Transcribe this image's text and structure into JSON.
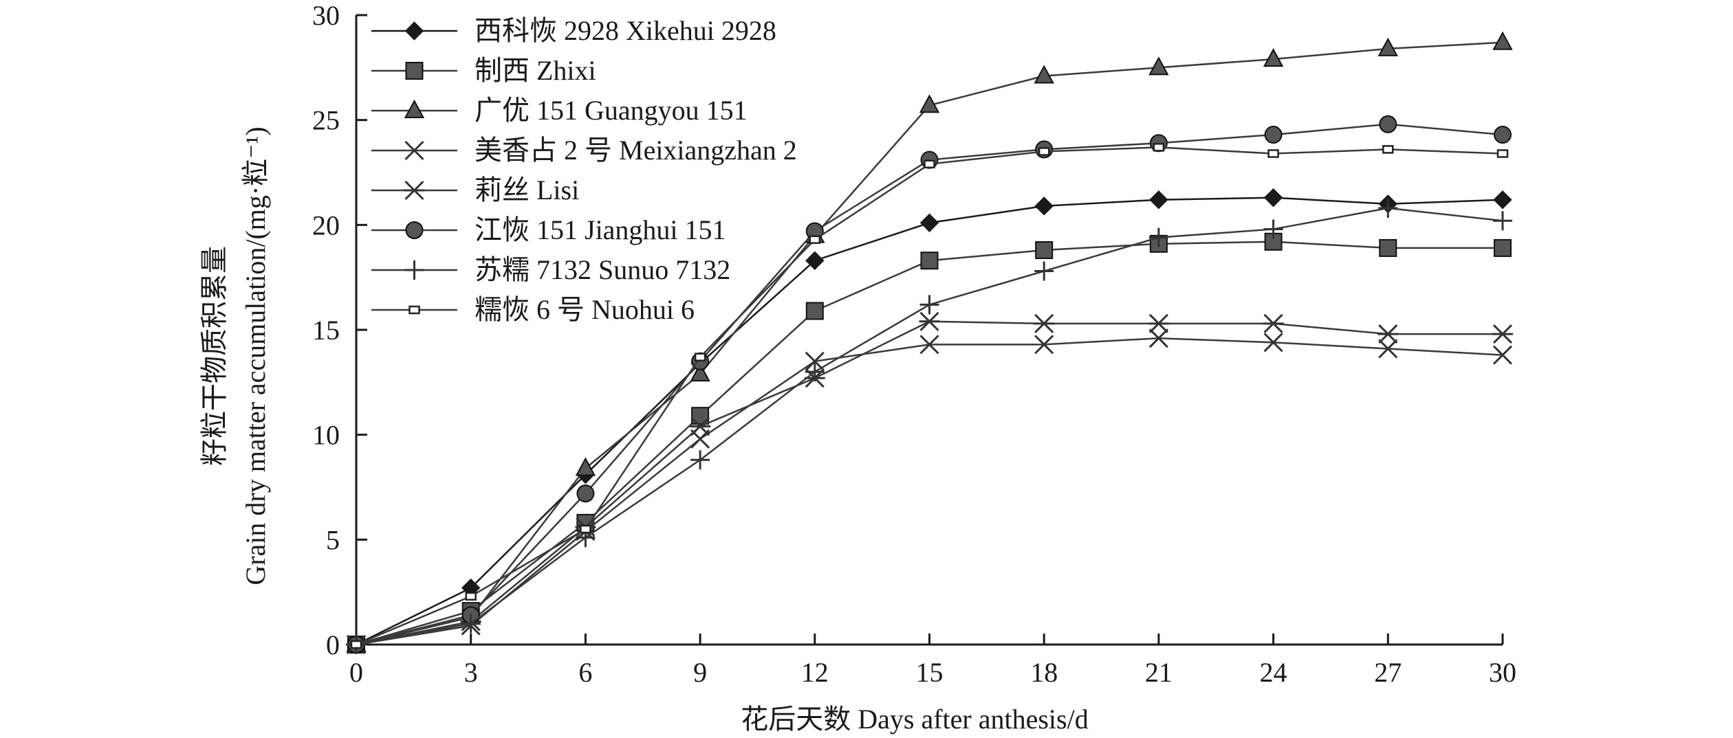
{
  "chart_data": {
    "type": "line",
    "title": "",
    "xlabel": "花后天数 Days after anthesis/d",
    "ylabel_line1": "籽粒干物质积累量",
    "ylabel_line2": "Grain dry matter accumulation/(mg·粒⁻¹)",
    "x": [
      0,
      3,
      6,
      9,
      12,
      15,
      18,
      21,
      24,
      27,
      30
    ],
    "xlim": [
      0,
      30
    ],
    "ylim": [
      0,
      30
    ],
    "xticks": [
      "0",
      "3",
      "6",
      "9",
      "12",
      "15",
      "18",
      "21",
      "24",
      "27",
      "30"
    ],
    "yticks": [
      "0",
      "5",
      "10",
      "15",
      "20",
      "25",
      "30"
    ],
    "grid": false,
    "legend_position": "top-left",
    "series": [
      {
        "name": "西科恢 2928 Xikehui 2928",
        "marker": "diamond",
        "color": "#1a1a1a",
        "values": [
          0,
          2.7,
          8.1,
          13.4,
          18.3,
          20.1,
          20.9,
          21.2,
          21.3,
          21.0,
          21.2
        ]
      },
      {
        "name": "制西 Zhixi",
        "marker": "square",
        "color": "#3a3a3a",
        "values": [
          0,
          1.6,
          5.8,
          10.9,
          15.9,
          18.3,
          18.8,
          19.1,
          19.2,
          18.9,
          18.9
        ]
      },
      {
        "name": "广优 151 Guangyou 151",
        "marker": "triangle",
        "color": "#3a3a3a",
        "values": [
          0,
          1.3,
          8.4,
          12.9,
          19.5,
          25.7,
          27.1,
          27.5,
          27.9,
          28.4,
          28.7
        ]
      },
      {
        "name": "美香占 2 号 Meixiangzhan 2",
        "marker": "x",
        "color": "#3a3a3a",
        "values": [
          0,
          0.9,
          5.4,
          9.8,
          13.5,
          14.3,
          14.3,
          14.6,
          14.4,
          14.1,
          13.8
        ]
      },
      {
        "name": "莉丝 Lisi",
        "marker": "asterisk",
        "color": "#3a3a3a",
        "values": [
          0,
          1.1,
          5.6,
          10.4,
          12.7,
          15.4,
          15.3,
          15.3,
          15.3,
          14.8,
          14.8
        ]
      },
      {
        "name": "江恢 151 Jianghui 151",
        "marker": "circle",
        "color": "#3a3a3a",
        "values": [
          0,
          1.4,
          7.2,
          13.5,
          19.7,
          23.1,
          23.6,
          23.9,
          24.3,
          24.8,
          24.3
        ]
      },
      {
        "name": "苏糯 7132 Sunuo 7132",
        "marker": "plus",
        "color": "#3a3a3a",
        "values": [
          0,
          1.0,
          5.1,
          8.8,
          13.0,
          16.2,
          17.8,
          19.4,
          19.8,
          20.8,
          20.2
        ]
      },
      {
        "name": "糯恢 6 号 Nuohui 6",
        "marker": "smallsquare",
        "color": "#3a3a3a",
        "values": [
          0,
          2.3,
          5.5,
          13.7,
          19.3,
          22.9,
          23.5,
          23.7,
          23.4,
          23.6,
          23.4
        ]
      }
    ]
  }
}
